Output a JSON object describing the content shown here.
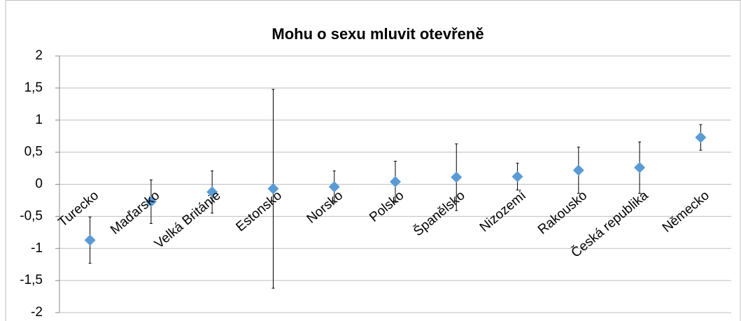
{
  "chart_data": {
    "type": "errorbar-scatter",
    "title": "Mohu o sexu mluvit otevřeně",
    "categories": [
      "Turecko",
      "Maďarsko",
      "Velká Británie",
      "Estonsko",
      "Norsko",
      "Polsko",
      "Španělsko",
      "Nizozemí",
      "Rakousko",
      "Česká republika",
      "Německo"
    ],
    "series": [
      {
        "color": "#5b9bd5",
        "values": [
          -0.87,
          -0.27,
          -0.12,
          -0.07,
          -0.04,
          0.04,
          0.11,
          0.12,
          0.22,
          0.26,
          0.73
        ],
        "errors": [
          0.36,
          0.34,
          0.33,
          1.55,
          0.25,
          0.32,
          0.52,
          0.21,
          0.36,
          0.4,
          0.2
        ]
      }
    ],
    "ylim": [
      -2,
      2
    ],
    "yticks": [
      -2,
      {
        "value": -1.5,
        "label": "-1,5"
      },
      -1,
      {
        "value": -0.5,
        "label": "-0,5"
      },
      0,
      {
        "value": 0.5,
        "label": "0,5"
      },
      1,
      {
        "value": 1.5,
        "label": "1,5"
      },
      2
    ],
    "grid": true
  }
}
